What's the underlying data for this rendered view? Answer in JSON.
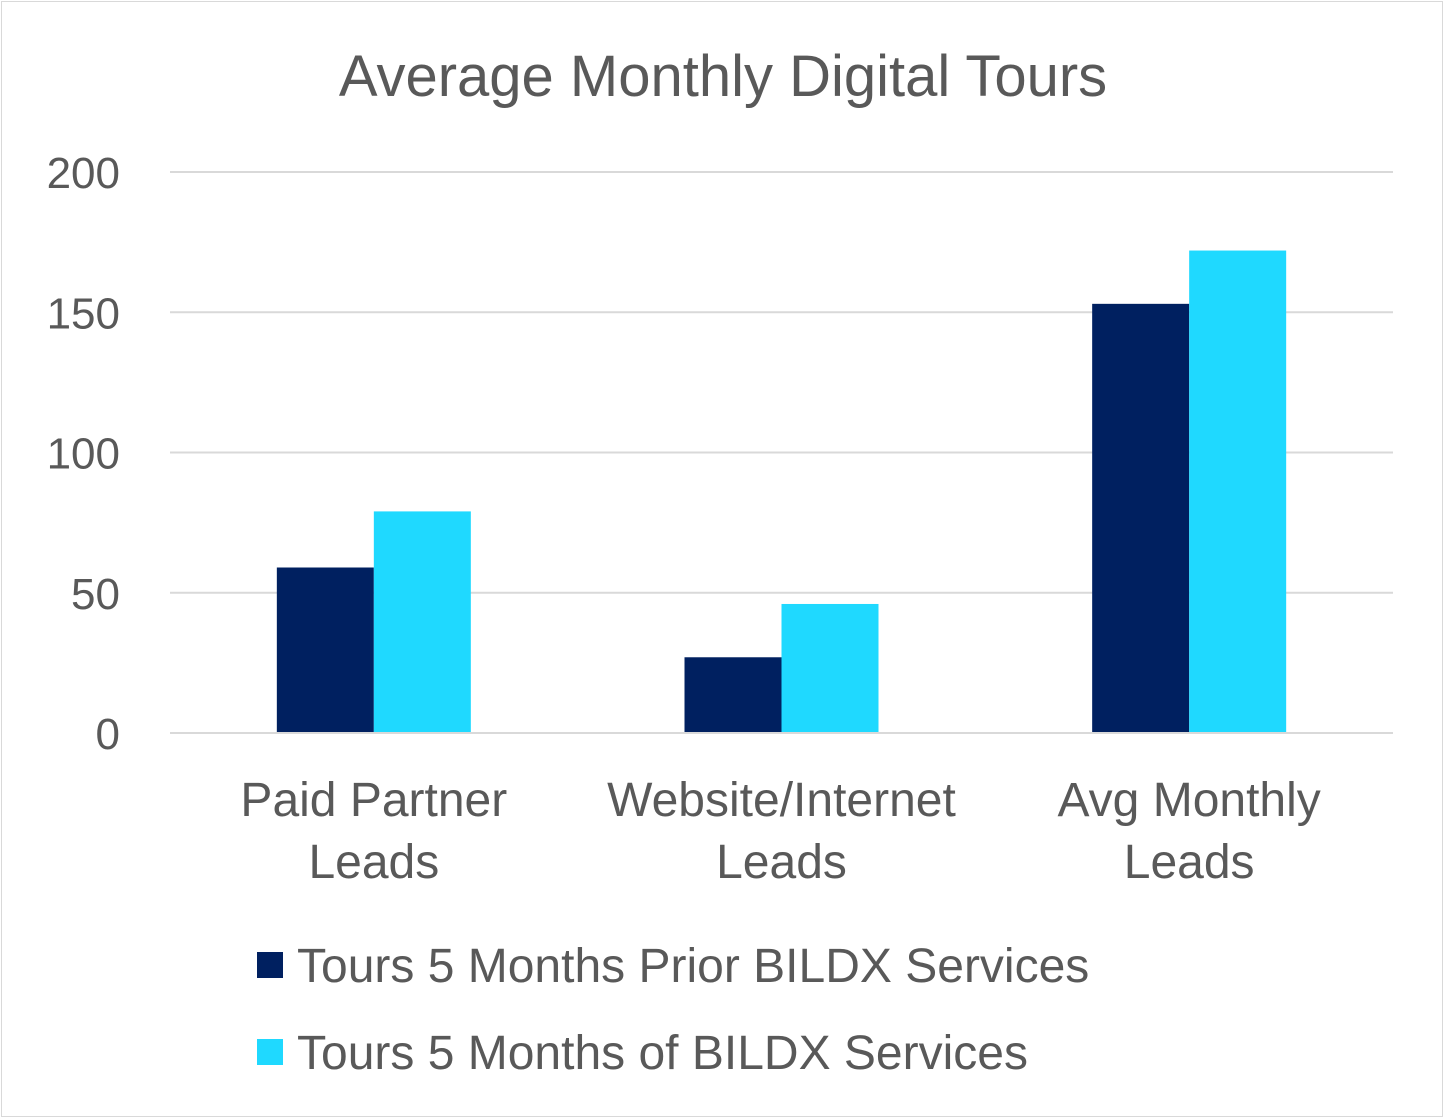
{
  "chart_data": {
    "type": "bar",
    "title": "Average Monthly Digital Tours",
    "xlabel": "",
    "ylabel": "",
    "ylim": [
      0,
      200
    ],
    "yticks": [
      0,
      50,
      100,
      150,
      200
    ],
    "grid": true,
    "legend_position": "bottom",
    "categories": [
      [
        "Paid Partner",
        "Leads"
      ],
      [
        "Website/Internet",
        "Leads"
      ],
      [
        "Avg Monthly",
        "Leads"
      ]
    ],
    "series": [
      {
        "name": "Tours 5 Months Prior BILDX Services",
        "color": "#002060",
        "values": [
          59,
          27,
          153
        ]
      },
      {
        "name": "Tours 5 Months of BILDX Services",
        "color": "#1FD9FF",
        "values": [
          79,
          46,
          172
        ]
      }
    ]
  }
}
